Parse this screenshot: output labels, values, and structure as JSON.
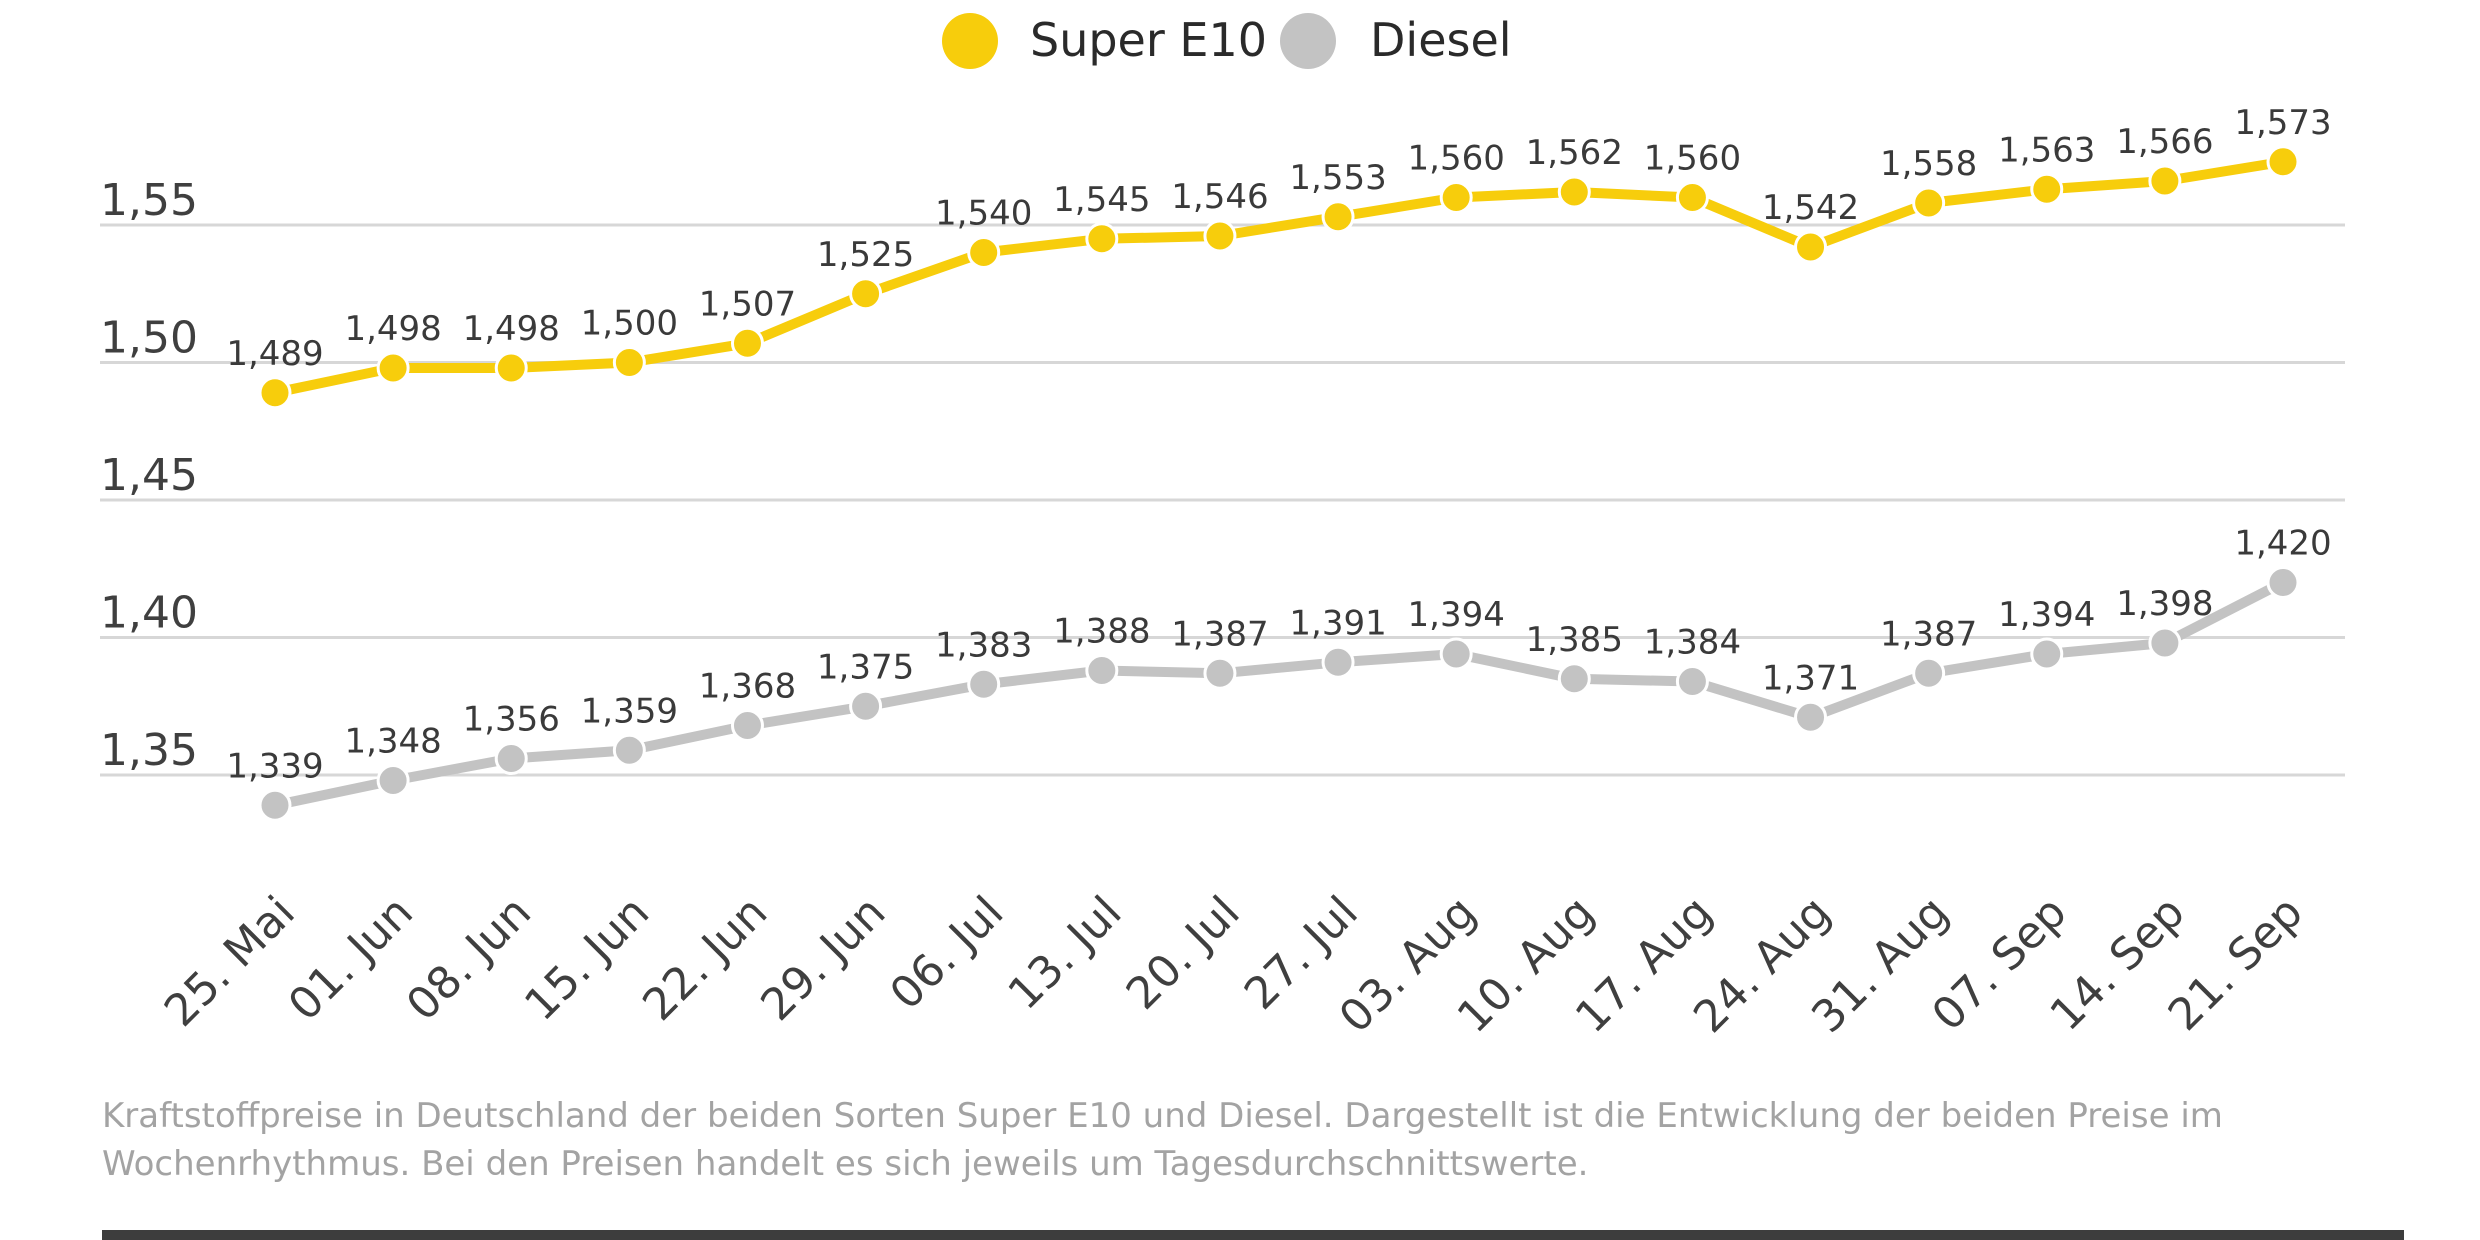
{
  "colors": {
    "super": "#f7cd0c",
    "diesel": "#c3c3c3",
    "grid": "#d7d7d7",
    "tick": "#3f3f3f",
    "label": "#3a3a3a"
  },
  "caption": "Kraftstoffpreise in Deutschland der beiden Sorten Super E10 und Diesel. Dargestellt ist die Entwicklung der beiden Preise im Wochenrhythmus. Bei den Preisen handelt es sich jeweils um Tagesdurchschnittswerte.",
  "chart_data": {
    "type": "line",
    "title": "",
    "xlabel": "",
    "ylabel": "",
    "legend_position": "top-center",
    "grid": true,
    "ylim": [
      1.3,
      1.58
    ],
    "yticks": [
      1.35,
      1.4,
      1.45,
      1.5,
      1.55
    ],
    "ytick_labels": [
      "1,35",
      "1,40",
      "1,45",
      "1,50",
      "1,55"
    ],
    "categories": [
      "25. Mai",
      "01. Jun",
      "08. Jun",
      "15. Jun",
      "22. Jun",
      "29. Jun",
      "06. Jul",
      "13. Jul",
      "20. Jul",
      "27. Jul",
      "03. Aug",
      "10. Aug",
      "17. Aug",
      "24. Aug",
      "31. Aug",
      "07. Sep",
      "14. Sep",
      "21. Sep"
    ],
    "series": [
      {
        "name": "Super E10",
        "color": "#f7cd0c",
        "values": [
          1.489,
          1.498,
          1.498,
          1.5,
          1.507,
          1.525,
          1.54,
          1.545,
          1.546,
          1.553,
          1.56,
          1.562,
          1.56,
          1.542,
          1.558,
          1.563,
          1.566,
          1.573
        ],
        "labels": [
          "1,489",
          "1,498",
          "1,498",
          "1,500",
          "1,507",
          "1,525",
          "1,540",
          "1,545",
          "1,546",
          "1,553",
          "1,560",
          "1,562",
          "1,560",
          "1,542",
          "1,558",
          "1,563",
          "1,566",
          "1,573"
        ]
      },
      {
        "name": "Diesel",
        "color": "#c3c3c3",
        "values": [
          1.339,
          1.348,
          1.356,
          1.359,
          1.368,
          1.375,
          1.383,
          1.388,
          1.387,
          1.391,
          1.394,
          1.385,
          1.384,
          1.371,
          1.387,
          1.394,
          1.398,
          1.42
        ],
        "labels": [
          "1,339",
          "1,348",
          "1,356",
          "1,359",
          "1,368",
          "1,375",
          "1,383",
          "1,388",
          "1,387",
          "1,391",
          "1,394",
          "1,385",
          "1,384",
          "1,371",
          "1,387",
          "1,394",
          "1,398",
          "1,420"
        ]
      }
    ]
  }
}
